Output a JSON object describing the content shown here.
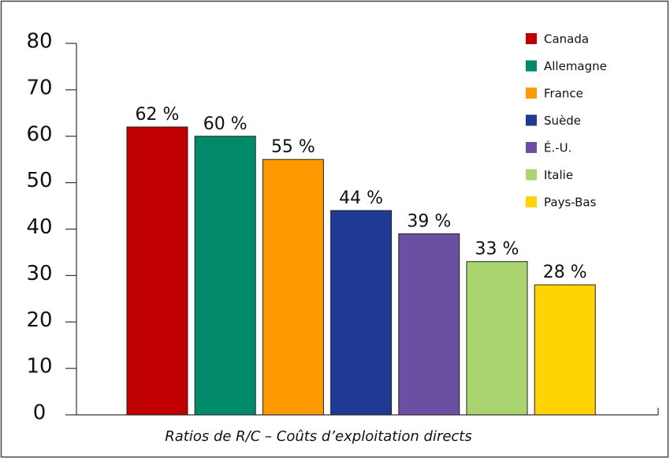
{
  "chart_data": {
    "type": "bar",
    "xlabel": "Ratios de R/C – Coûts d’exploitation directs",
    "categories": [
      "Canada",
      "Allemagne",
      "France",
      "Suède",
      "É.-U.",
      "Italie",
      "Pays-Bas"
    ],
    "values": [
      62,
      60,
      55,
      44,
      39,
      33,
      28
    ],
    "value_labels": [
      "62 %",
      "60 %",
      "55 %",
      "44 %",
      "39 %",
      "33 %",
      "28 %"
    ],
    "colors": [
      "#c00000",
      "#008a6a",
      "#ff9900",
      "#1f3a93",
      "#6a4fa3",
      "#a9d46f",
      "#ffd400"
    ],
    "ylim": [
      0,
      80
    ],
    "yticks": [
      0,
      10,
      20,
      30,
      40,
      50,
      60,
      70,
      80
    ],
    "legend": "top-right"
  }
}
